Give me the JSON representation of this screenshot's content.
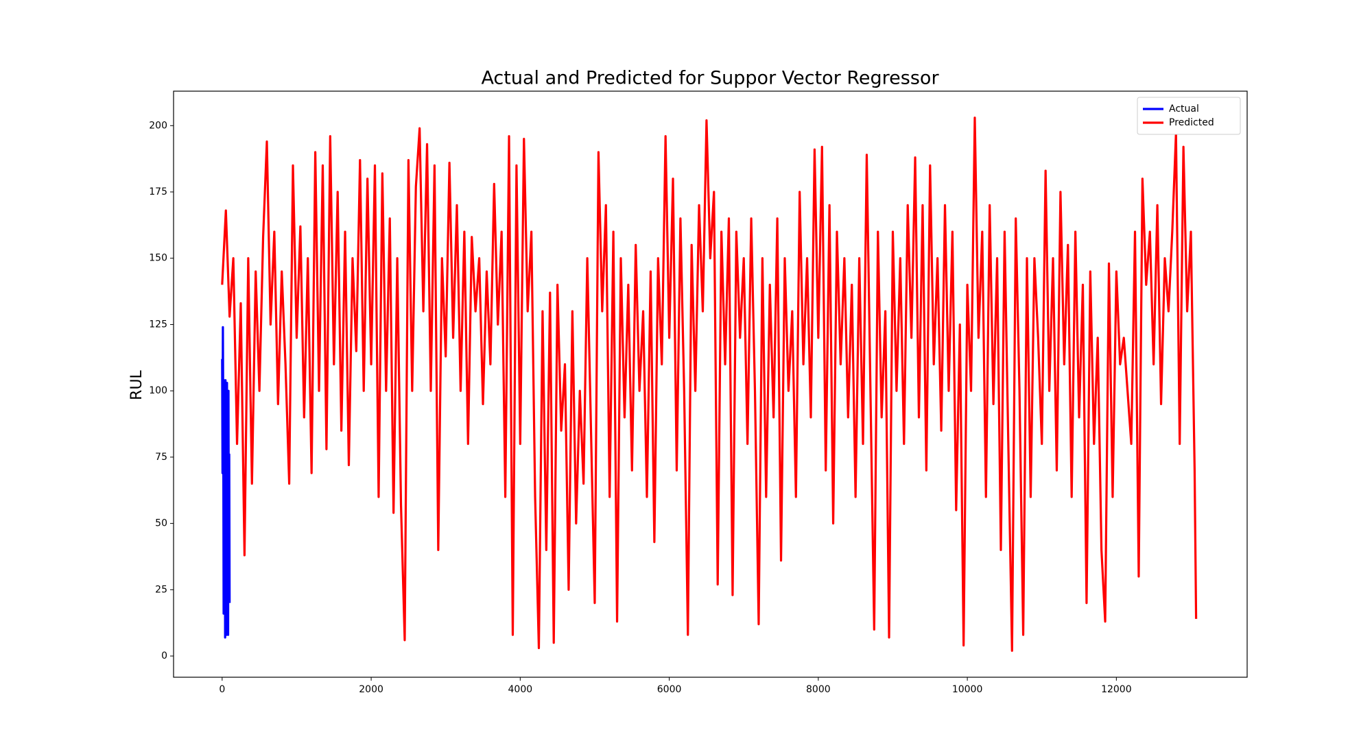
{
  "chart_data": {
    "type": "line",
    "title": "Actual and Predicted for Suppor Vector Regressor",
    "y_label": "RUL",
    "xlim": [
      -652,
      13755
    ],
    "ylim": [
      -8,
      213
    ],
    "xticks": [
      0,
      2000,
      4000,
      6000,
      8000,
      10000,
      12000
    ],
    "yticks": [
      0,
      25,
      50,
      75,
      100,
      125,
      150,
      175,
      200
    ],
    "grid": false,
    "legend": "upper right",
    "series": [
      {
        "name": "Actual",
        "color": "#0000ff",
        "x": [
          0,
          5,
          10,
          15,
          20,
          25,
          30,
          35,
          40,
          45,
          50,
          55,
          60,
          65,
          70,
          75,
          80,
          85,
          90,
          95,
          100
        ],
        "values": [
          112,
          69,
          124,
          90,
          16,
          104,
          30,
          100,
          7,
          104,
          60,
          95,
          8,
          103,
          20,
          90,
          8,
          100,
          30,
          76,
          20
        ]
      },
      {
        "name": "Predicted",
        "color": "#ff0000",
        "x": [
          0,
          50,
          100,
          150,
          200,
          250,
          300,
          350,
          400,
          450,
          500,
          550,
          600,
          650,
          700,
          750,
          800,
          850,
          900,
          950,
          1000,
          1050,
          1100,
          1150,
          1200,
          1250,
          1300,
          1350,
          1400,
          1450,
          1500,
          1550,
          1600,
          1650,
          1700,
          1750,
          1800,
          1850,
          1900,
          1950,
          2000,
          2050,
          2100,
          2150,
          2200,
          2250,
          2300,
          2350,
          2400,
          2450,
          2500,
          2550,
          2600,
          2650,
          2700,
          2750,
          2800,
          2850,
          2900,
          2950,
          3000,
          3050,
          3100,
          3150,
          3200,
          3250,
          3300,
          3350,
          3400,
          3450,
          3500,
          3550,
          3600,
          3650,
          3700,
          3750,
          3800,
          3850,
          3900,
          3950,
          4000,
          4050,
          4100,
          4150,
          4200,
          4250,
          4300,
          4350,
          4400,
          4450,
          4500,
          4550,
          4600,
          4650,
          4700,
          4750,
          4800,
          4850,
          4900,
          4950,
          5000,
          5050,
          5100,
          5150,
          5200,
          5250,
          5300,
          5350,
          5400,
          5450,
          5500,
          5550,
          5600,
          5650,
          5700,
          5750,
          5800,
          5850,
          5900,
          5950,
          6000,
          6050,
          6100,
          6150,
          6200,
          6250,
          6300,
          6350,
          6400,
          6450,
          6500,
          6550,
          6600,
          6650,
          6700,
          6750,
          6800,
          6850,
          6900,
          6950,
          7000,
          7050,
          7100,
          7150,
          7200,
          7250,
          7300,
          7350,
          7400,
          7450,
          7500,
          7550,
          7600,
          7650,
          7700,
          7750,
          7800,
          7850,
          7900,
          7950,
          8000,
          8050,
          8100,
          8150,
          8200,
          8250,
          8300,
          8350,
          8400,
          8450,
          8500,
          8550,
          8600,
          8650,
          8700,
          8750,
          8800,
          8850,
          8900,
          8950,
          9000,
          9050,
          9100,
          9150,
          9200,
          9250,
          9300,
          9350,
          9400,
          9450,
          9500,
          9550,
          9600,
          9650,
          9700,
          9750,
          9800,
          9850,
          9900,
          9950,
          10000,
          10050,
          10100,
          10150,
          10200,
          10250,
          10300,
          10350,
          10400,
          10450,
          10500,
          10550,
          10600,
          10650,
          10700,
          10750,
          10800,
          10850,
          10900,
          10950,
          11000,
          11050,
          11100,
          11150,
          11200,
          11250,
          11300,
          11350,
          11400,
          11450,
          11500,
          11550,
          11600,
          11650,
          11700,
          11750,
          11800,
          11850,
          11900,
          11950,
          12000,
          12050,
          12100,
          12150,
          12200,
          12250,
          12300,
          12350,
          12400,
          12450,
          12500,
          12550,
          12600,
          12650,
          12700,
          12750,
          12800,
          12850,
          12900,
          12950,
          13000,
          13050,
          13070
        ],
        "values": [
          140,
          168,
          128,
          150,
          80,
          133,
          38,
          150,
          65,
          145,
          100,
          158,
          194,
          125,
          160,
          95,
          145,
          110,
          65,
          185,
          120,
          162,
          90,
          150,
          69,
          190,
          100,
          185,
          78,
          196,
          110,
          175,
          85,
          160,
          72,
          150,
          115,
          187,
          100,
          180,
          110,
          185,
          60,
          182,
          100,
          165,
          54,
          150,
          57,
          6,
          187,
          100,
          177,
          199,
          130,
          193,
          100,
          185,
          40,
          150,
          113,
          186,
          120,
          170,
          100,
          160,
          80,
          158,
          130,
          150,
          95,
          145,
          110,
          178,
          125,
          160,
          60,
          196,
          8,
          185,
          80,
          195,
          130,
          160,
          60,
          3,
          130,
          40,
          137,
          5,
          140,
          85,
          110,
          25,
          130,
          50,
          100,
          65,
          150,
          85,
          20,
          190,
          130,
          170,
          60,
          160,
          13,
          150,
          90,
          140,
          70,
          155,
          100,
          130,
          60,
          145,
          43,
          150,
          110,
          196,
          120,
          180,
          70,
          165,
          100,
          8,
          155,
          100,
          170,
          130,
          202,
          150,
          175,
          27,
          160,
          110,
          165,
          23,
          160,
          120,
          150,
          80,
          165,
          100,
          12,
          150,
          60,
          140,
          90,
          165,
          36,
          150,
          100,
          130,
          60,
          175,
          110,
          150,
          90,
          191,
          120,
          192,
          70,
          170,
          50,
          160,
          110,
          150,
          90,
          140,
          60,
          150,
          80,
          189,
          100,
          10,
          160,
          90,
          130,
          7,
          160,
          100,
          150,
          80,
          170,
          120,
          188,
          90,
          170,
          70,
          185,
          110,
          150,
          85,
          170,
          100,
          160,
          55,
          125,
          4,
          140,
          100,
          203,
          120,
          160,
          60,
          170,
          95,
          150,
          40,
          160,
          80,
          2,
          165,
          100,
          8,
          150,
          60,
          150,
          120,
          80,
          183,
          100,
          150,
          70,
          175,
          110,
          155,
          60,
          160,
          90,
          140,
          20,
          145,
          80,
          120,
          40,
          13,
          148,
          60,
          145,
          110,
          120,
          100,
          80,
          160,
          30,
          180,
          140,
          160,
          110,
          170,
          95,
          150,
          130,
          160,
          197,
          80,
          192,
          130,
          160,
          70,
          14
        ]
      }
    ]
  }
}
